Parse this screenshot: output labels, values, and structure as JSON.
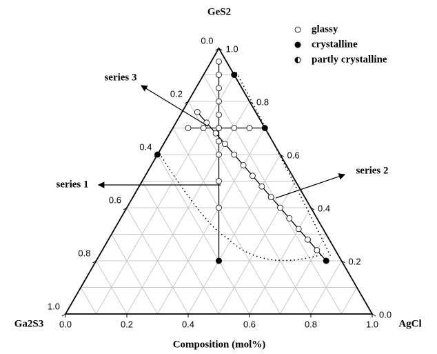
{
  "chart_data": {
    "type": "ternary",
    "title": "GeS2",
    "corner_labels": {
      "left": "Ga2S3",
      "right": "AgCl"
    },
    "xlabel": "Composition (mol%)",
    "bottom_ticks": [
      {
        "value": 0,
        "label": "0.0"
      },
      {
        "value": 0.2,
        "label": "0.2"
      },
      {
        "value": 0.4,
        "label": "0.4"
      },
      {
        "value": 0.6,
        "label": "0.6"
      },
      {
        "value": 0.8,
        "label": "0.8"
      },
      {
        "value": 1,
        "label": "1.0"
      }
    ],
    "right_ticks": [
      {
        "value": 0,
        "label": "0.0"
      },
      {
        "value": 0.2,
        "label": "0.2"
      },
      {
        "value": 0.4,
        "label": "0.4"
      },
      {
        "value": 0.6,
        "label": "0.6"
      },
      {
        "value": 0.8,
        "label": "0.8"
      },
      {
        "value": 1,
        "label": "1.0"
      }
    ],
    "left_ticks": [
      {
        "value": 0,
        "label": "0.0"
      },
      {
        "value": 0.2,
        "label": "0.2"
      },
      {
        "value": 0.4,
        "label": "0.4"
      },
      {
        "value": 0.6,
        "label": "0.6"
      },
      {
        "value": 0.8,
        "label": "0.8"
      },
      {
        "value": 1,
        "label": "1.0"
      }
    ],
    "minor_ticks": [
      0.1,
      0.3,
      0.5,
      0.7,
      0.9
    ],
    "grid": true,
    "legend": {
      "labels": [
        "glassy",
        "crystalline",
        "partly crystalline"
      ],
      "position": "upper right"
    },
    "series": [
      {
        "name": "series 1",
        "x": [
          0.025,
          0.05,
          0.075,
          0.1,
          0.125,
          0.15,
          0.175,
          0.2,
          0.25,
          0.3,
          0.4
        ],
        "y": [
          0.95,
          0.9,
          0.85,
          0.8,
          0.75,
          0.7,
          0.65,
          0.6,
          0.5,
          0.4,
          0.2
        ],
        "status": [
          0,
          0,
          0,
          0,
          0,
          0,
          0,
          0,
          0,
          0,
          1
        ]
      },
      {
        "name": "series 2",
        "x": [
          0.05,
          0.1,
          0.15,
          0.2,
          0.25,
          0.3,
          0.35,
          0.4,
          0.45,
          0.5,
          0.55,
          0.6,
          0.65,
          0.7,
          0.75
        ],
        "y": [
          0.76,
          0.72,
          0.68,
          0.64,
          0.6,
          0.56,
          0.52,
          0.48,
          0.44,
          0.4,
          0.36,
          0.32,
          0.28,
          0.24,
          0.2
        ],
        "status": [
          0,
          0,
          0,
          0,
          0,
          0,
          0,
          0,
          0,
          0,
          0,
          0,
          0,
          0,
          1
        ]
      },
      {
        "name": "series 3",
        "x": [
          0.05,
          0.1,
          0.15,
          0.2,
          0.25,
          0.3
        ],
        "y": [
          0.7,
          0.7,
          0.7,
          0.7,
          0.7,
          0.7
        ],
        "status": [
          0,
          0,
          0,
          0,
          0,
          1
        ]
      }
    ],
    "other_points": {
      "x": [
        0,
        0.1
      ],
      "y": [
        0.6,
        0.9
      ],
      "status": [
        1,
        1
      ]
    }
  }
}
